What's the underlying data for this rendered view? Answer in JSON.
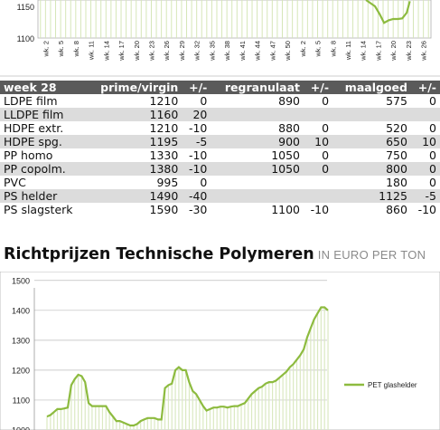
{
  "chart_data": [
    {
      "type": "bar",
      "title": "",
      "ylim": [
        1100,
        1160
      ],
      "y_ticks": [
        "1150",
        "1100"
      ],
      "categories": [
        "wk. 2",
        "wk. 5",
        "wk. 8",
        "wk. 11",
        "wk. 14",
        "wk. 17",
        "wk. 20",
        "wk. 23",
        "wk. 26",
        "wk. 29",
        "wk. 32",
        "wk. 35",
        "wk. 38",
        "wk. 41",
        "wk. 44",
        "wk. 47",
        "wk. 50",
        "wk. 2",
        "wk. 5",
        "wk. 8",
        "wk. 11",
        "wk. 14",
        "wk. 17",
        "wk. 20",
        "wk. 23",
        "wk. 26"
      ],
      "series": [
        {
          "line_x_index": [
            21.2,
            21.5,
            21.8,
            22.1,
            22.4,
            22.7,
            23.0,
            23.3,
            23.6,
            23.9,
            24.1
          ],
          "line_values": [
            1165,
            1155,
            1150,
            1138,
            1124,
            1128,
            1130,
            1130,
            1131,
            1140,
            1158
          ]
        }
      ],
      "line_color": "#8dbb3f"
    },
    {
      "type": "line",
      "title": "",
      "ylim": [
        1000,
        1500
      ],
      "y_ticks": [
        "1500",
        "1400",
        "1300",
        "1200",
        "1100",
        "1000"
      ],
      "grid": true,
      "legend_position": "right",
      "series": [
        {
          "name": "PET glashelder",
          "values": [
            1045,
            1050,
            1060,
            1070,
            1070,
            1072,
            1075,
            1150,
            1170,
            1185,
            1180,
            1160,
            1090,
            1080,
            1080,
            1080,
            1080,
            1080,
            1060,
            1045,
            1030,
            1030,
            1025,
            1020,
            1015,
            1015,
            1020,
            1030,
            1035,
            1040,
            1040,
            1040,
            1035,
            1035,
            1140,
            1150,
            1155,
            1200,
            1210,
            1200,
            1200,
            1160,
            1130,
            1120,
            1100,
            1080,
            1065,
            1070,
            1075,
            1075,
            1078,
            1078,
            1075,
            1078,
            1080,
            1080,
            1085,
            1090,
            1105,
            1120,
            1130,
            1140,
            1145,
            1155,
            1160,
            1160,
            1165,
            1175,
            1185,
            1195,
            1210,
            1220,
            1235,
            1250,
            1270,
            1310,
            1340,
            1370,
            1390,
            1410,
            1410,
            1400
          ]
        }
      ],
      "line_color": "#8dbb3f"
    }
  ],
  "table": {
    "headers": [
      "week 28",
      "prime/virgin",
      "+/-",
      "regranulaat",
      "+/-",
      "maalgoed",
      "+/-"
    ],
    "rows": [
      [
        "LDPE film",
        "1210",
        "0",
        "890",
        "0",
        "575",
        "0"
      ],
      [
        "LLDPE film",
        "1160",
        "20",
        "",
        "",
        "",
        ""
      ],
      [
        "HDPE extr.",
        "1210",
        "-10",
        "880",
        "0",
        "520",
        "0"
      ],
      [
        "HDPE spg.",
        "1195",
        "-5",
        "900",
        "10",
        "650",
        "10"
      ],
      [
        "PP homo",
        "1330",
        "-10",
        "1050",
        "0",
        "750",
        "0"
      ],
      [
        "PP copolm.",
        "1380",
        "-10",
        "1050",
        "0",
        "800",
        "0"
      ],
      [
        "PVC",
        "995",
        "0",
        "",
        "",
        "180",
        "0"
      ],
      [
        "PS helder",
        "1490",
        "-40",
        "",
        "",
        "1125",
        "-5"
      ],
      [
        "PS slagsterk",
        "1590",
        "-30",
        "1100",
        "-10",
        "860",
        "-10"
      ]
    ]
  },
  "section": {
    "title": "Richtprijzen Technische Polymeren",
    "subtitle": "IN EURO PER TON"
  }
}
